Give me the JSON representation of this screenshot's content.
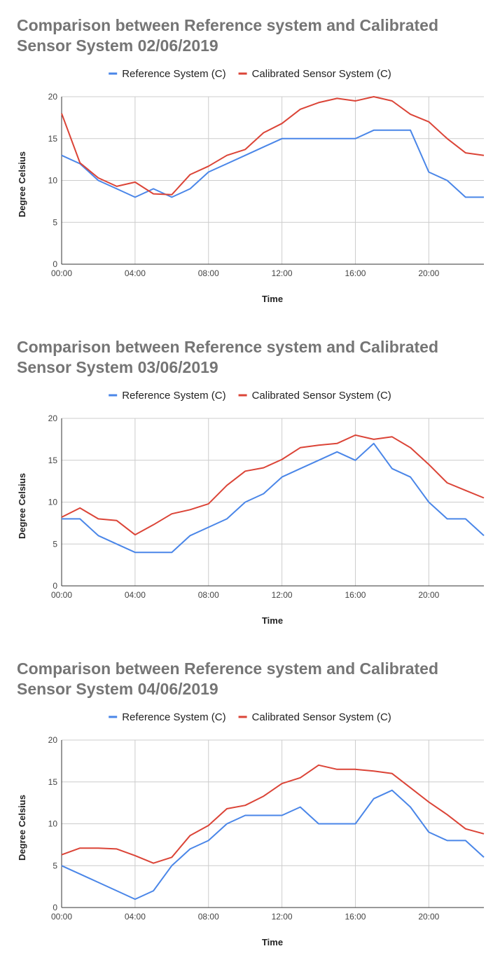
{
  "chart_data": [
    {
      "type": "line",
      "title": "Comparison between  Reference system and Calibrated Sensor System  02/06/2019",
      "xlabel": "Time",
      "ylabel": "Degree Celsius",
      "ylim": [
        0,
        20
      ],
      "yticks": [
        "0",
        "5",
        "10",
        "15",
        "20"
      ],
      "xticks": [
        "00:00",
        "04:00",
        "08:00",
        "12:00",
        "16:00",
        "20:00"
      ],
      "xlim": [
        0,
        23
      ],
      "grid": true,
      "legend_position": "top",
      "x": [
        0,
        1,
        2,
        3,
        4,
        5,
        6,
        7,
        8,
        9,
        10,
        11,
        12,
        13,
        14,
        15,
        16,
        17,
        18,
        19,
        20,
        21,
        22,
        23
      ],
      "series": [
        {
          "name": "Reference System (C)",
          "color": "#4a86e8",
          "values": [
            13,
            12,
            10,
            9,
            8,
            9,
            8,
            9,
            11,
            12,
            13,
            14,
            15,
            15,
            15,
            15,
            15,
            16,
            16,
            16,
            11,
            10,
            8,
            8
          ]
        },
        {
          "name": "Calibrated  Sensor System (C)",
          "color": "#db4437",
          "values": [
            18,
            12.1,
            10.3,
            9.3,
            9.8,
            8.4,
            8.3,
            10.7,
            11.7,
            13,
            13.7,
            15.7,
            16.8,
            18.5,
            19.3,
            19.8,
            19.5,
            20,
            19.5,
            17.9,
            17,
            15,
            13.3,
            13
          ]
        }
      ]
    },
    {
      "type": "line",
      "title": "Comparison between  Reference system and Calibrated Sensor System  03/06/2019",
      "xlabel": "Time",
      "ylabel": "Degree Celsius",
      "ylim": [
        0,
        20
      ],
      "yticks": [
        "0",
        "5",
        "10",
        "15",
        "20"
      ],
      "xticks": [
        "00:00",
        "04:00",
        "08:00",
        "12:00",
        "16:00",
        "20:00"
      ],
      "xlim": [
        0,
        23
      ],
      "grid": true,
      "legend_position": "top",
      "x": [
        0,
        1,
        2,
        3,
        4,
        5,
        6,
        7,
        8,
        9,
        10,
        11,
        12,
        13,
        14,
        15,
        16,
        17,
        18,
        19,
        20,
        21,
        22,
        23
      ],
      "series": [
        {
          "name": "Reference System (C)",
          "color": "#4a86e8",
          "values": [
            8,
            8,
            6,
            5,
            4,
            4,
            4,
            6,
            7,
            8,
            10,
            11,
            13,
            14,
            15,
            16,
            15,
            17,
            14,
            13,
            10,
            8,
            8,
            6
          ]
        },
        {
          "name": "Calibrated Sensor System (C)",
          "color": "#db4437",
          "values": [
            8.2,
            9.3,
            8,
            7.8,
            6.1,
            7.3,
            8.6,
            9.1,
            9.8,
            12,
            13.7,
            14.1,
            15.1,
            16.5,
            16.8,
            17,
            18,
            17.5,
            17.8,
            16.5,
            14.5,
            12.3,
            11.4,
            10.5
          ]
        }
      ]
    },
    {
      "type": "line",
      "title": "Comparison between  Reference system and Calibrated Sensor System  04/06/2019",
      "xlabel": "Time",
      "ylabel": "Degree Celsius",
      "ylim": [
        0,
        20
      ],
      "yticks": [
        "0",
        "5",
        "10",
        "15",
        "20"
      ],
      "xticks": [
        "00:00",
        "04:00",
        "08:00",
        "12:00",
        "16:00",
        "20:00"
      ],
      "xlim": [
        0,
        23
      ],
      "grid": true,
      "legend_position": "top",
      "x": [
        0,
        1,
        2,
        3,
        4,
        5,
        6,
        7,
        8,
        9,
        10,
        11,
        12,
        13,
        14,
        15,
        16,
        17,
        18,
        19,
        20,
        21,
        22,
        23
      ],
      "series": [
        {
          "name": "Reference System (C)",
          "color": "#4a86e8",
          "values": [
            5,
            4,
            3,
            2,
            1,
            2,
            5,
            7,
            8,
            10,
            11,
            11,
            11,
            12,
            10,
            10,
            10,
            13,
            14,
            12,
            9,
            8,
            8,
            6
          ]
        },
        {
          "name": "Calibrated  Sensor System (C)",
          "color": "#db4437",
          "values": [
            6.3,
            7.1,
            7.1,
            7,
            6.2,
            5.3,
            6,
            8.6,
            9.8,
            11.8,
            12.2,
            13.3,
            14.8,
            15.5,
            17,
            16.5,
            16.5,
            16.3,
            16,
            14.3,
            12.6,
            11.1,
            9.4,
            8.8
          ]
        }
      ]
    }
  ]
}
